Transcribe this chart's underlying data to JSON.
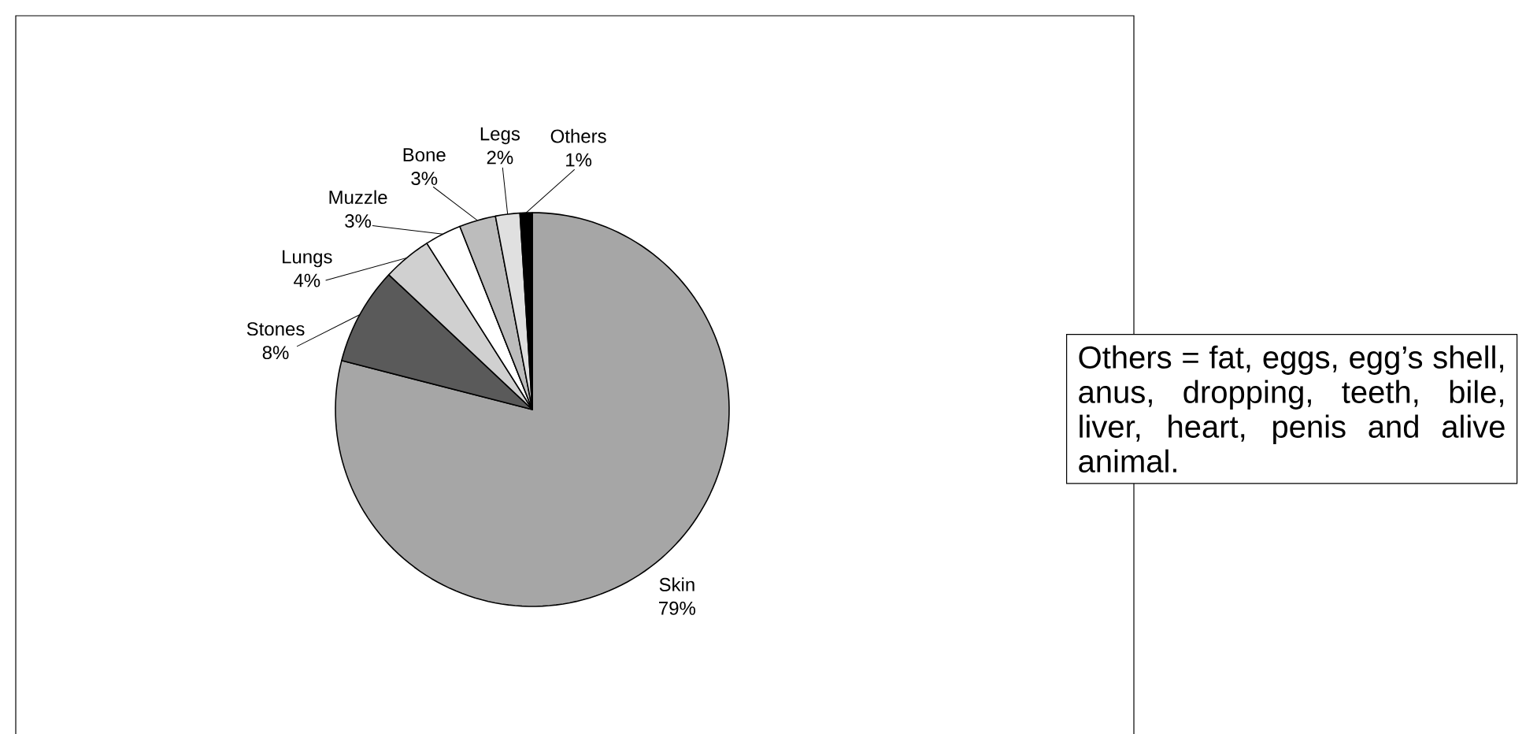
{
  "chart_data": {
    "type": "pie",
    "categories": [
      "Skin",
      "Stones",
      "Lungs",
      "Muzzle",
      "Bone",
      "Legs",
      "Others"
    ],
    "values": [
      79,
      8,
      4,
      3,
      3,
      2,
      1
    ],
    "value_labels": [
      "79%",
      "8%",
      "4%",
      "3%",
      "3%",
      "2%",
      "1%"
    ],
    "colors": [
      "#a6a6a6",
      "#5a5a5a",
      "#d0d0d0",
      "#ffffff",
      "#bcbcbc",
      "#e0e0e0",
      "#000000"
    ],
    "annotations": [
      "Others = fat, eggs, egg’s shell, anus, dropping, teeth, bile, liver, heart, penis and alive animal."
    ]
  }
}
